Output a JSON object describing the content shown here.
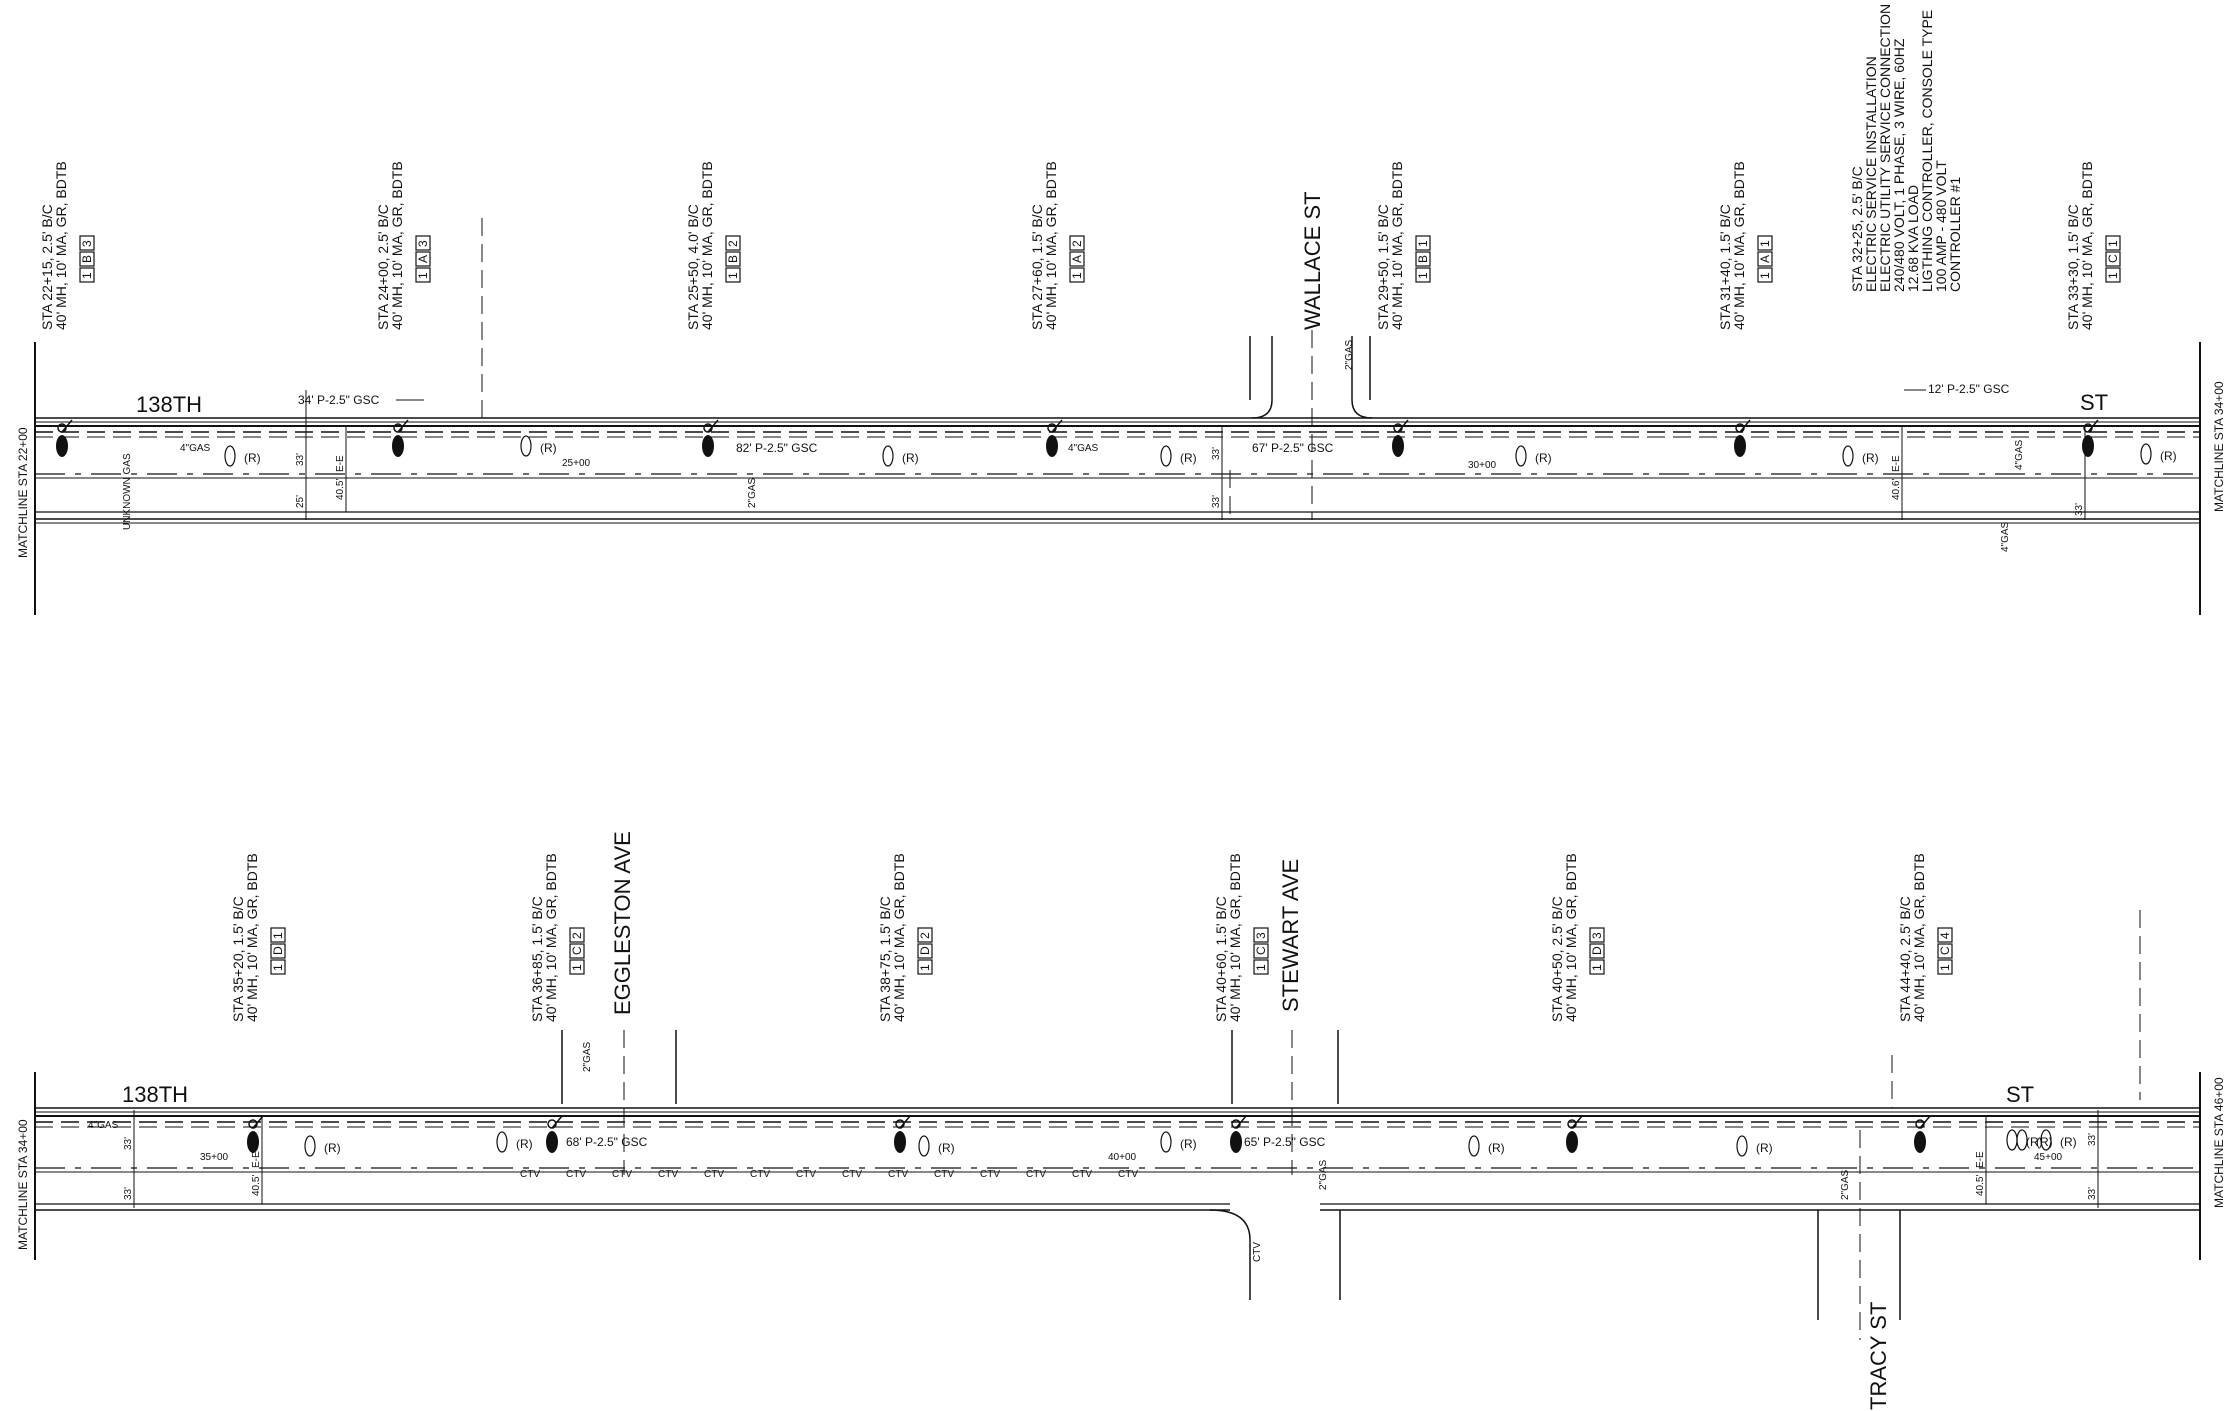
{
  "sheet": {
    "panels": [
      {
        "id": "upper",
        "matchline_left": "MATCHLINE STA 22+00",
        "matchline_right": "MATCHLINE STA 34+00",
        "street_start": "138TH",
        "street_end": "ST",
        "cross_street": "WALLACE ST",
        "poles": [
          {
            "line1": "STA 22+15, 2.5' B/C",
            "line2": "40' MH, 10' MA, GR, BDTB",
            "codes": [
              "1",
              "B",
              "3"
            ]
          },
          {
            "line1": "STA 24+00, 2.5' B/C",
            "line2": "40' MH, 10' MA, GR, BDTB",
            "codes": [
              "1",
              "A",
              "3"
            ]
          },
          {
            "line1": "STA 25+50, 4.0' B/C",
            "line2": "40' MH, 10' MA, GR, BDTB",
            "codes": [
              "1",
              "B",
              "2"
            ]
          },
          {
            "line1": "STA 27+60, 1.5' B/C",
            "line2": "40' MH, 10' MA, GR, BDTB",
            "codes": [
              "1",
              "A",
              "2"
            ]
          },
          {
            "line1": "STA 29+50, 1.5' B/C",
            "line2": "40' MH, 10' MA, GR, BDTB",
            "codes": [
              "1",
              "B",
              "1"
            ]
          },
          {
            "line1": "STA 31+40, 1.5' B/C",
            "line2": "40' MH, 10' MA, GR, BDTB",
            "codes": [
              "1",
              "A",
              "1"
            ]
          },
          {
            "line1": "STA 33+30, 1.5' B/C",
            "line2": "40' MH, 10' MA, GR, BDTB",
            "codes": [
              "1",
              "C",
              "1"
            ]
          }
        ],
        "service_note": [
          "STA 32+25, 2.5' B/C",
          "ELECTRIC SERVICE INSTALLATION",
          "ELECTRIC UTILITY SERVICE CONNECTION",
          "240/480 VOLT, 1 PHASE, 3 WIRE, 60HZ",
          "12.68 KVA LOAD",
          "LIGTHING CONTROLLER, CONSOLE TYPE",
          "100 AMP - 480 VOLT",
          "CONTROLLER #1"
        ],
        "conduit_labels": [
          "34' P-2.5\" GSC",
          "82' P-2.5\" GSC",
          "67' P-2.5\" GSC",
          "12' P-2.5\" GSC"
        ],
        "stations": [
          "25+00",
          "30+00"
        ],
        "dims": [
          "33'",
          "25'",
          "40.5'",
          "E-E",
          "33'",
          "33'",
          "40.6'",
          "E-E",
          "33'"
        ],
        "misc": [
          "4\"GAS",
          "4\"GAS",
          "2\"GAS",
          "2\"GAS",
          "4\"GAS",
          "4\"GAS",
          "UNKNOWN GAS",
          "(R)",
          "(R)",
          "(R)",
          "(R)",
          "(R)",
          "(R)",
          "(R)",
          "(R)"
        ]
      },
      {
        "id": "lower",
        "matchline_left": "MATCHLINE STA 34+00",
        "matchline_right": "MATCHLINE STA 46+00",
        "street_start": "138TH",
        "street_end": "ST",
        "cross_streets": [
          "EGGLESTON AVE",
          "STEWART AVE",
          "TRACY ST"
        ],
        "poles": [
          {
            "line1": "STA 35+20, 1.5' B/C",
            "line2": "40' MH, 10' MA, GR, BDTB",
            "codes": [
              "1",
              "D",
              "1"
            ]
          },
          {
            "line1": "STA 36+85, 1.5' B/C",
            "line2": "40' MH, 10' MA, GR, BDTB",
            "codes": [
              "1",
              "C",
              "2"
            ]
          },
          {
            "line1": "STA 38+75, 1.5' B/C",
            "line2": "40' MH, 10' MA, GR, BDTB",
            "codes": [
              "1",
              "D",
              "2"
            ]
          },
          {
            "line1": "STA 40+60, 1.5' B/C",
            "line2": "40' MH, 10' MA, GR, BDTB",
            "codes": [
              "1",
              "C",
              "3"
            ]
          },
          {
            "line1": "STA 40+50, 2.5' B/C",
            "line2": "40' MH, 10' MA, GR, BDTB",
            "codes": [
              "1",
              "D",
              "3"
            ]
          },
          {
            "line1": "STA 44+40, 2.5' B/C",
            "line2": "40' MH, 10' MA, GR, BDTB",
            "codes": [
              "1",
              "C",
              "4"
            ]
          }
        ],
        "conduit_labels": [
          "68' P-2.5\" GSC",
          "65' P-2.5\" GSC"
        ],
        "stations": [
          "35+00",
          "40+00",
          "45+00"
        ],
        "dims": [
          "33'",
          "40.5'",
          "E-E",
          "33'",
          "40.5'",
          "E-E",
          "33'",
          "33'"
        ],
        "misc": [
          "4\"GAS",
          "2\"GAS",
          "2\"GAS",
          "2\"GAS",
          "CTV",
          "(R)",
          "(R)",
          "(R)",
          "(R)",
          "(R)",
          "(R)",
          "(R)",
          "(R)",
          "(R)"
        ]
      }
    ]
  }
}
